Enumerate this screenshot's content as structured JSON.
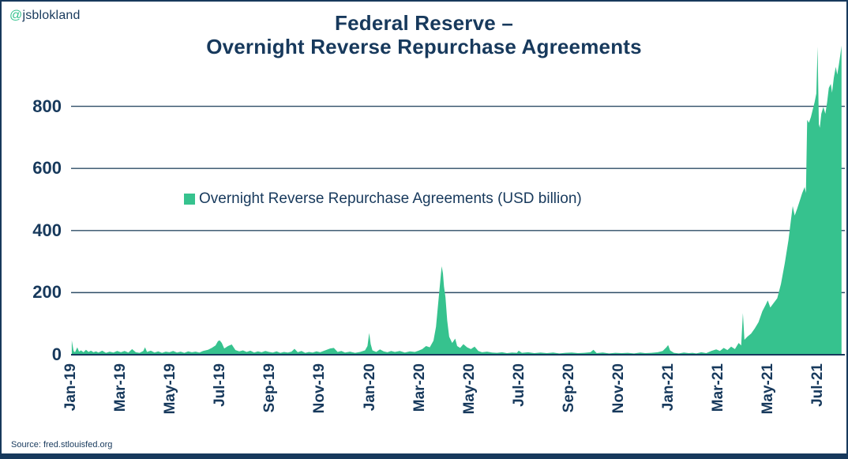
{
  "header": {
    "handle_at": "@",
    "handle_name": "jsblokland"
  },
  "title": {
    "line1": "Federal Reserve –",
    "line2": "Overnight Reverse Repurchase Agreements"
  },
  "legend": {
    "label": "Overnight Reverse Repurchase Agreements (USD billion)"
  },
  "source": {
    "text": "Source: fred.stlouisfed.org"
  },
  "colors": {
    "navy": "#17395C",
    "grid": "#2E4D66",
    "green": "#36C28E",
    "background": "#FFFFFF"
  },
  "chart_data": {
    "type": "area",
    "title": "Federal Reserve – Overnight Reverse Repurchase Agreements",
    "ylabel": "USD billion",
    "xlabel": "",
    "legend_entries": [
      "Overnight Reverse Repurchase Agreements (USD billion)"
    ],
    "legend_position": "center-upper",
    "grid": "horizontal",
    "y_ticks": [
      0,
      200,
      400,
      600,
      800
    ],
    "ylim": [
      0,
      1010
    ],
    "x_tick_labels": [
      "Jan-19",
      "Mar-19",
      "May-19",
      "Jul-19",
      "Sep-19",
      "Nov-19",
      "Jan-20",
      "Mar-20",
      "May-20",
      "Jul-20",
      "Sep-20",
      "Nov-20",
      "Jan-21",
      "Mar-21",
      "May-21",
      "Jul-21"
    ],
    "x_tick_positions": [
      0,
      2,
      4,
      6,
      8,
      10,
      12,
      14,
      16,
      18,
      20,
      22,
      24,
      26,
      28,
      30
    ],
    "xlim": [
      0,
      31
    ],
    "x_unit": "months since Jan-2019",
    "series": [
      {
        "name": "Overnight Reverse Repurchase Agreements (USD billion)",
        "points": [
          [
            0.03,
            46
          ],
          [
            0.1,
            12
          ],
          [
            0.16,
            8
          ],
          [
            0.25,
            24
          ],
          [
            0.32,
            10
          ],
          [
            0.4,
            14
          ],
          [
            0.5,
            8
          ],
          [
            0.6,
            16
          ],
          [
            0.7,
            9
          ],
          [
            0.8,
            13
          ],
          [
            0.9,
            8
          ],
          [
            1.0,
            11
          ],
          [
            1.1,
            7
          ],
          [
            1.25,
            13
          ],
          [
            1.4,
            6
          ],
          [
            1.55,
            10
          ],
          [
            1.7,
            7
          ],
          [
            1.85,
            12
          ],
          [
            2.0,
            8
          ],
          [
            2.15,
            12
          ],
          [
            2.3,
            7
          ],
          [
            2.45,
            18
          ],
          [
            2.6,
            8
          ],
          [
            2.75,
            6
          ],
          [
            2.9,
            12
          ],
          [
            2.97,
            24
          ],
          [
            3.05,
            9
          ],
          [
            3.2,
            13
          ],
          [
            3.35,
            7
          ],
          [
            3.5,
            11
          ],
          [
            3.65,
            6
          ],
          [
            3.8,
            10
          ],
          [
            3.95,
            8
          ],
          [
            4.1,
            12
          ],
          [
            4.25,
            7
          ],
          [
            4.4,
            10
          ],
          [
            4.55,
            6
          ],
          [
            4.7,
            11
          ],
          [
            4.85,
            8
          ],
          [
            5.0,
            10
          ],
          [
            5.15,
            7
          ],
          [
            5.3,
            12
          ],
          [
            5.5,
            16
          ],
          [
            5.65,
            22
          ],
          [
            5.8,
            30
          ],
          [
            5.9,
            44
          ],
          [
            5.97,
            46
          ],
          [
            6.05,
            38
          ],
          [
            6.15,
            20
          ],
          [
            6.3,
            28
          ],
          [
            6.45,
            33
          ],
          [
            6.6,
            15
          ],
          [
            6.75,
            11
          ],
          [
            6.9,
            14
          ],
          [
            7.05,
            9
          ],
          [
            7.2,
            13
          ],
          [
            7.35,
            7
          ],
          [
            7.5,
            11
          ],
          [
            7.65,
            8
          ],
          [
            7.8,
            12
          ],
          [
            7.95,
            9
          ],
          [
            8.1,
            7
          ],
          [
            8.25,
            11
          ],
          [
            8.4,
            6
          ],
          [
            8.55,
            9
          ],
          [
            8.7,
            7
          ],
          [
            8.85,
            10
          ],
          [
            8.97,
            19
          ],
          [
            9.1,
            8
          ],
          [
            9.25,
            12
          ],
          [
            9.4,
            6
          ],
          [
            9.55,
            9
          ],
          [
            9.7,
            7
          ],
          [
            9.85,
            11
          ],
          [
            10.0,
            8
          ],
          [
            10.2,
            14
          ],
          [
            10.4,
            20
          ],
          [
            10.55,
            22
          ],
          [
            10.7,
            9
          ],
          [
            10.85,
            12
          ],
          [
            11.0,
            7
          ],
          [
            11.2,
            10
          ],
          [
            11.4,
            6
          ],
          [
            11.6,
            9
          ],
          [
            11.8,
            14
          ],
          [
            11.9,
            28
          ],
          [
            11.97,
            70
          ],
          [
            12.03,
            34
          ],
          [
            12.1,
            14
          ],
          [
            12.25,
            9
          ],
          [
            12.4,
            17
          ],
          [
            12.55,
            11
          ],
          [
            12.7,
            8
          ],
          [
            12.85,
            12
          ],
          [
            13.0,
            9
          ],
          [
            13.2,
            12
          ],
          [
            13.4,
            7
          ],
          [
            13.6,
            11
          ],
          [
            13.8,
            9
          ],
          [
            13.95,
            13
          ],
          [
            14.1,
            18
          ],
          [
            14.25,
            28
          ],
          [
            14.4,
            24
          ],
          [
            14.55,
            45
          ],
          [
            14.65,
            90
          ],
          [
            14.72,
            150
          ],
          [
            14.8,
            218
          ],
          [
            14.88,
            285
          ],
          [
            14.93,
            262
          ],
          [
            14.97,
            220
          ],
          [
            15.03,
            185
          ],
          [
            15.1,
            110
          ],
          [
            15.18,
            58
          ],
          [
            15.3,
            38
          ],
          [
            15.42,
            52
          ],
          [
            15.5,
            28
          ],
          [
            15.62,
            22
          ],
          [
            15.75,
            34
          ],
          [
            15.9,
            24
          ],
          [
            16.05,
            18
          ],
          [
            16.2,
            26
          ],
          [
            16.35,
            12
          ],
          [
            16.5,
            8
          ],
          [
            16.7,
            10
          ],
          [
            16.9,
            7
          ],
          [
            17.1,
            6
          ],
          [
            17.3,
            8
          ],
          [
            17.5,
            5
          ],
          [
            17.7,
            7
          ],
          [
            17.9,
            6
          ],
          [
            17.97,
            13
          ],
          [
            18.1,
            6
          ],
          [
            18.35,
            8
          ],
          [
            18.6,
            5
          ],
          [
            18.85,
            7
          ],
          [
            19.1,
            5
          ],
          [
            19.35,
            7
          ],
          [
            19.6,
            4
          ],
          [
            19.85,
            6
          ],
          [
            20.1,
            7
          ],
          [
            20.35,
            5
          ],
          [
            20.6,
            6
          ],
          [
            20.85,
            8
          ],
          [
            20.97,
            16
          ],
          [
            21.1,
            5
          ],
          [
            21.35,
            7
          ],
          [
            21.6,
            4
          ],
          [
            21.85,
            6
          ],
          [
            22.1,
            5
          ],
          [
            22.35,
            6
          ],
          [
            22.6,
            4
          ],
          [
            22.85,
            7
          ],
          [
            23.05,
            5
          ],
          [
            23.3,
            6
          ],
          [
            23.55,
            8
          ],
          [
            23.75,
            12
          ],
          [
            23.9,
            24
          ],
          [
            23.97,
            31
          ],
          [
            24.05,
            14
          ],
          [
            24.2,
            6
          ],
          [
            24.4,
            4
          ],
          [
            24.6,
            7
          ],
          [
            24.8,
            5
          ],
          [
            24.95,
            6
          ],
          [
            25.1,
            4
          ],
          [
            25.3,
            8
          ],
          [
            25.5,
            5
          ],
          [
            25.7,
            12
          ],
          [
            25.9,
            17
          ],
          [
            26.05,
            12
          ],
          [
            26.2,
            22
          ],
          [
            26.35,
            15
          ],
          [
            26.5,
            26
          ],
          [
            26.65,
            18
          ],
          [
            26.8,
            38
          ],
          [
            26.9,
            30
          ],
          [
            26.97,
            134
          ],
          [
            27.03,
            48
          ],
          [
            27.15,
            58
          ],
          [
            27.3,
            68
          ],
          [
            27.45,
            85
          ],
          [
            27.6,
            105
          ],
          [
            27.75,
            140
          ],
          [
            27.88,
            160
          ],
          [
            27.97,
            175
          ],
          [
            28.07,
            152
          ],
          [
            28.2,
            166
          ],
          [
            28.35,
            182
          ],
          [
            28.5,
            228
          ],
          [
            28.65,
            294
          ],
          [
            28.8,
            369
          ],
          [
            28.9,
            433
          ],
          [
            28.97,
            479
          ],
          [
            29.05,
            448
          ],
          [
            29.15,
            470
          ],
          [
            29.25,
            495
          ],
          [
            29.35,
            520
          ],
          [
            29.45,
            540
          ],
          [
            29.5,
            521
          ],
          [
            29.55,
            756
          ],
          [
            29.62,
            747
          ],
          [
            29.7,
            765
          ],
          [
            29.78,
            791
          ],
          [
            29.85,
            813
          ],
          [
            29.92,
            841
          ],
          [
            29.97,
            992
          ],
          [
            30.02,
            742
          ],
          [
            30.06,
            731
          ],
          [
            30.12,
            776
          ],
          [
            30.2,
            798
          ],
          [
            30.28,
            776
          ],
          [
            30.35,
            812
          ],
          [
            30.42,
            859
          ],
          [
            30.5,
            872
          ],
          [
            30.55,
            844
          ],
          [
            30.62,
            891
          ],
          [
            30.7,
            927
          ],
          [
            30.76,
            902
          ],
          [
            30.82,
            932
          ],
          [
            30.88,
            965
          ],
          [
            30.93,
            995
          ]
        ]
      }
    ]
  }
}
